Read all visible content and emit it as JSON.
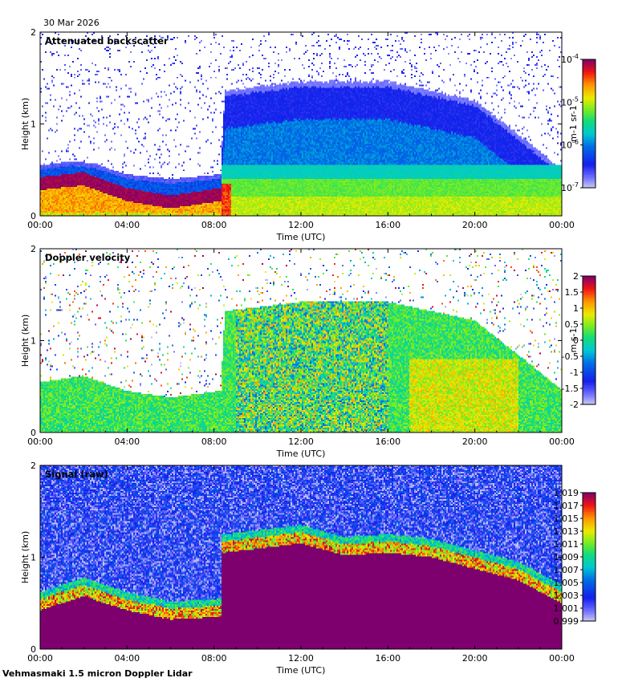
{
  "date": "30 Mar 2026",
  "footer": "Vehmasmaki 1.5 micron Doppler Lidar",
  "chart_data": [
    {
      "type": "heatmap",
      "title": "Attenuated backscatter",
      "xlabel": "Time (UTC)",
      "ylabel": "Height (km)",
      "xlim": [
        0,
        24
      ],
      "ylim": [
        0,
        2
      ],
      "x_ticks": [
        "00:00",
        "04:00",
        "08:00",
        "12:00",
        "16:00",
        "20:00",
        "00:00"
      ],
      "y_ticks": [
        "0",
        "1",
        "2"
      ],
      "colorbar": {
        "label": "m-1 sr-1",
        "scale": "log",
        "range": [
          1e-07,
          0.0001
        ],
        "ticks": [
          {
            "base": "10",
            "exp": "-4"
          },
          {
            "base": "10",
            "exp": "-5"
          },
          {
            "base": "10",
            "exp": "-6"
          },
          {
            "base": "10",
            "exp": "-7"
          }
        ]
      },
      "features": {
        "boundary_layer_top_km": [
          [
            0,
            0.5
          ],
          [
            2,
            0.55
          ],
          [
            4,
            0.4
          ],
          [
            6,
            0.33
          ],
          [
            8.3,
            0.38
          ],
          [
            8.5,
            1.3
          ],
          [
            12,
            1.4
          ],
          [
            16,
            1.4
          ],
          [
            20,
            1.2
          ],
          [
            24,
            0.45
          ]
        ]
      }
    },
    {
      "type": "heatmap",
      "title": "Doppler velocity",
      "xlabel": "Time (UTC)",
      "ylabel": "Height (km)",
      "xlim": [
        0,
        24
      ],
      "ylim": [
        0,
        2
      ],
      "x_ticks": [
        "00:00",
        "04:00",
        "08:00",
        "12:00",
        "16:00",
        "20:00",
        "00:00"
      ],
      "y_ticks": [
        "0",
        "1",
        "2"
      ],
      "colorbar": {
        "label": "m s-1",
        "scale": "linear",
        "range": [
          -2,
          2
        ],
        "ticks": [
          "2",
          "1.5",
          "1",
          "0.5",
          "0",
          "-0.5",
          "-1",
          "-1.5",
          "-2"
        ]
      }
    },
    {
      "type": "heatmap",
      "title": "Signal (raw)",
      "xlabel": "Time (UTC)",
      "ylabel": "Height (km)",
      "xlim": [
        0,
        24
      ],
      "ylim": [
        0,
        2
      ],
      "x_ticks": [
        "00:00",
        "04:00",
        "08:00",
        "12:00",
        "16:00",
        "20:00",
        "00:00"
      ],
      "y_ticks": [
        "0",
        "1",
        "2"
      ],
      "colorbar": {
        "label": "",
        "scale": "linear",
        "range": [
          0.999,
          1.02
        ],
        "ticks": [
          "1.019",
          "1.017",
          "1.015",
          "1.013",
          "1.011",
          "1.009",
          "1.007",
          "1.005",
          "1.003",
          "1.001",
          "0.999"
        ]
      }
    }
  ]
}
